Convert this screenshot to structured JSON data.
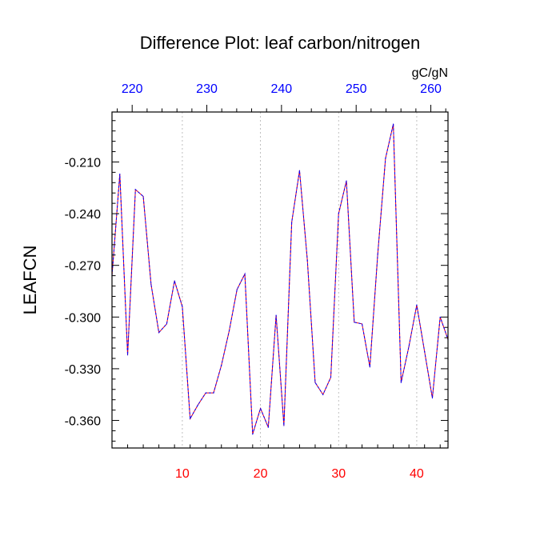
{
  "chart_data": {
    "type": "line",
    "title": "Difference Plot: leaf carbon/nitrogen",
    "ylabel": "LEAFCN",
    "top_units": "gC/gN",
    "line_colors": [
      "#ff0000",
      "#0000ff"
    ],
    "bottom_axis": {
      "range": [
        1,
        44
      ],
      "ticks": [
        10,
        20,
        30,
        40
      ],
      "tick_labels": [
        "10",
        "20",
        "30",
        "40"
      ],
      "color": "#ff0000"
    },
    "top_axis": {
      "range": [
        217.3,
        262.3
      ],
      "ticks": [
        220,
        230,
        240,
        250,
        260
      ],
      "tick_labels": [
        "220",
        "230",
        "240",
        "250",
        "260"
      ],
      "color": "#0000ff"
    },
    "y_axis": {
      "range": [
        -0.376,
        -0.181
      ],
      "ticks": [
        -0.21,
        -0.24,
        -0.27,
        -0.3,
        -0.33,
        -0.36
      ],
      "tick_labels": [
        "-0.210",
        "-0.240",
        "-0.270",
        "-0.300",
        "-0.330",
        "-0.360"
      ]
    },
    "grid": "vertical dashed at bottom-axis ticks",
    "x": [
      1,
      2,
      3,
      4,
      5,
      6,
      7,
      8,
      9,
      10,
      11,
      12,
      13,
      14,
      15,
      16,
      17,
      18,
      19,
      20,
      21,
      22,
      23,
      24,
      25,
      26,
      27,
      28,
      29,
      30,
      31,
      32,
      33,
      34,
      35,
      36,
      37,
      38,
      39,
      40,
      41,
      42,
      43,
      44
    ],
    "values": [
      -0.276,
      -0.217,
      -0.322,
      -0.226,
      -0.23,
      -0.281,
      -0.309,
      -0.304,
      -0.279,
      -0.294,
      -0.359,
      -0.351,
      -0.344,
      -0.344,
      -0.328,
      -0.308,
      -0.284,
      -0.275,
      -0.368,
      -0.353,
      -0.364,
      -0.299,
      -0.363,
      -0.245,
      -0.215,
      -0.267,
      -0.338,
      -0.345,
      -0.335,
      -0.24,
      -0.221,
      -0.303,
      -0.304,
      -0.329,
      -0.264,
      -0.208,
      -0.188,
      -0.338,
      -0.317,
      -0.293,
      -0.32,
      -0.347,
      -0.3,
      -0.313
    ]
  }
}
